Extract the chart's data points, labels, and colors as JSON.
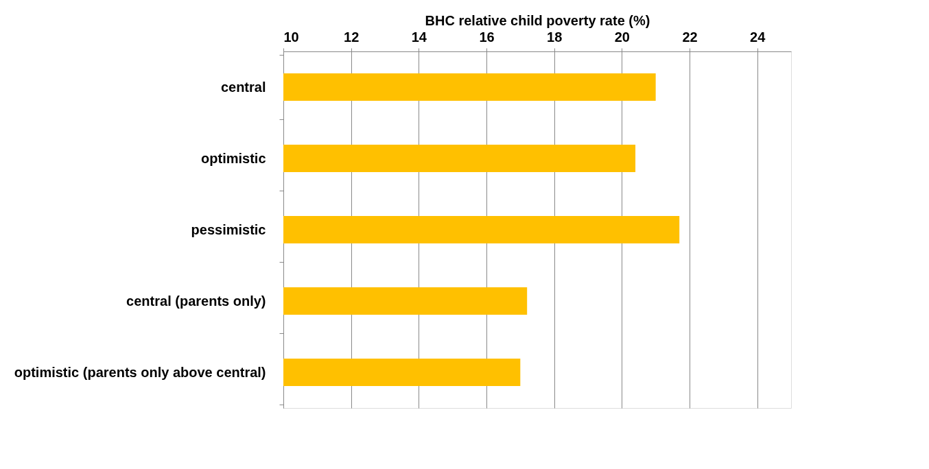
{
  "chart_data": {
    "type": "bar",
    "orientation": "horizontal",
    "xlabel": "BHC relative child poverty rate (%)",
    "categories": [
      "central",
      "optimistic",
      "pessimistic",
      "central (parents only)",
      "optimistic (parents only above central)"
    ],
    "values": [
      21.0,
      20.4,
      21.7,
      17.2,
      17.0
    ],
    "color": "#ffc000",
    "xlim": [
      10,
      25
    ],
    "xticks": [
      10,
      12,
      14,
      16,
      18,
      20,
      22,
      24
    ],
    "grid": "x"
  }
}
